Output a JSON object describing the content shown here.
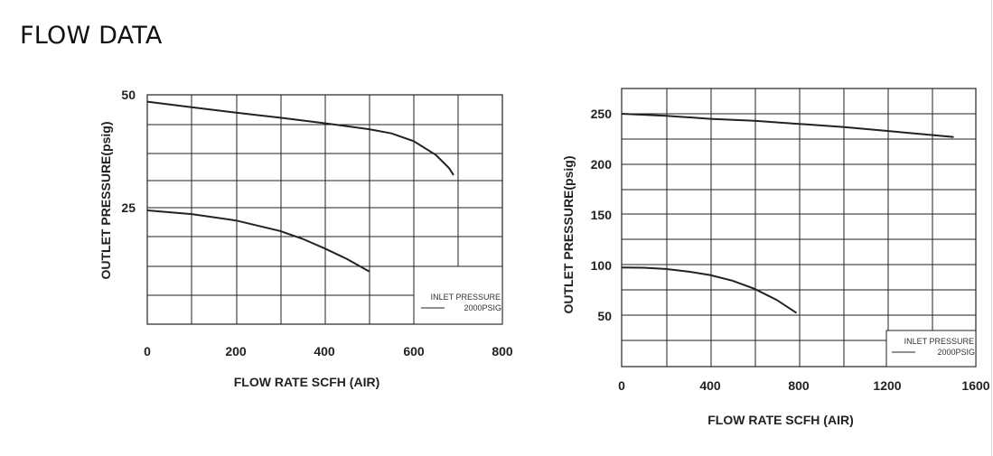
{
  "page_title": "FLOW DATA",
  "colors": {
    "line": "#222222",
    "grid": "#222222",
    "background": "#ffffff"
  },
  "chart_data": [
    {
      "type": "line",
      "title": "",
      "xlabel": "FLOW RATE SCFH (AIR)",
      "ylabel": "OUTLET PRESSURE(psig)",
      "xlim": [
        0,
        800
      ],
      "ylim": [
        0,
        50
      ],
      "xticks": [
        "0",
        "200",
        "400",
        "600",
        "800"
      ],
      "yticks": [
        "25",
        "50"
      ],
      "grid": true,
      "legend": {
        "title": "INLET PRESSURE",
        "entry": "2000PSIG",
        "placement": "bottom-right"
      },
      "series": [
        {
          "x": [
            0,
            100,
            200,
            300,
            400,
            500,
            550,
            600,
            650,
            680,
            690
          ],
          "y": [
            48.5,
            47.3,
            46.1,
            45,
            43.8,
            42.5,
            41.6,
            39.9,
            36.9,
            34,
            32.5
          ]
        },
        {
          "x": [
            0,
            100,
            200,
            300,
            350,
            400,
            450,
            500
          ],
          "y": [
            24.8,
            24,
            22.6,
            20.3,
            18.6,
            16.5,
            14.2,
            11.5
          ]
        }
      ]
    },
    {
      "type": "line",
      "title": "",
      "xlabel": "FLOW RATE SCFH (AIR)",
      "ylabel": "OUTLET PRESSURE(psig)",
      "xlim": [
        0,
        1600
      ],
      "ylim": [
        0,
        275
      ],
      "xticks": [
        "0",
        "400",
        "800",
        "1200",
        "1600"
      ],
      "yticks": [
        "50",
        "100",
        "150",
        "200",
        "250"
      ],
      "grid": true,
      "legend": {
        "title": "INLET PRESSURE",
        "entry": "2000PSIG",
        "placement": "bottom-right"
      },
      "series": [
        {
          "x": [
            0,
            200,
            400,
            600,
            800,
            1000,
            1200,
            1400,
            1500
          ],
          "y": [
            250,
            248,
            245,
            243,
            240,
            237,
            233,
            229,
            227
          ]
        },
        {
          "x": [
            0,
            100,
            200,
            300,
            400,
            500,
            600,
            700,
            790
          ],
          "y": [
            98,
            97.8,
            96.5,
            94,
            90.5,
            85,
            77,
            66,
            53
          ]
        }
      ]
    }
  ]
}
